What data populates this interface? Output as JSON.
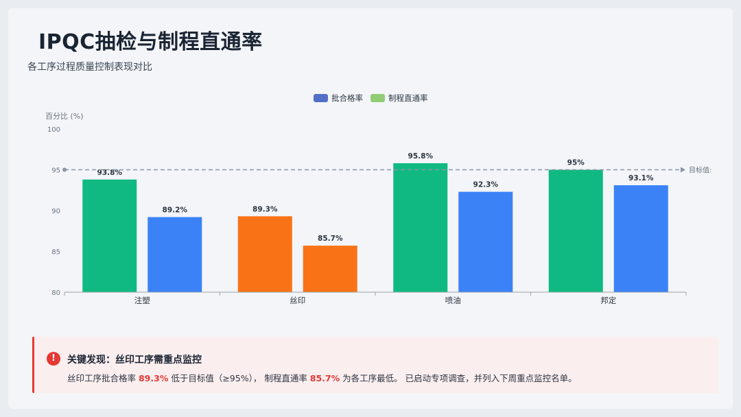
{
  "header": {
    "title": "IPQC抽检与制程直通率",
    "subtitle": "各工序过程质量控制表现对比"
  },
  "chart_data": {
    "type": "bar",
    "categories": [
      "注塑",
      "丝印",
      "喷油",
      "邦定"
    ],
    "series": [
      {
        "name": "批合格率",
        "legend_color": "#5470c6",
        "values": [
          93.8,
          89.3,
          95.8,
          95
        ]
      },
      {
        "name": "制程直通率",
        "legend_color": "#91cc75",
        "values": [
          89.2,
          85.7,
          92.3,
          93.1
        ]
      }
    ],
    "data_labels": [
      [
        "93.8%",
        "89.3%",
        "95.8%",
        "95%"
      ],
      [
        "89.2%",
        "85.7%",
        "92.3%",
        "93.1%"
      ]
    ],
    "bar_colors": [
      [
        "#10b981",
        "#f97316",
        "#10b981",
        "#10b981"
      ],
      [
        "#3b82f6",
        "#f97316",
        "#3b82f6",
        "#3b82f6"
      ]
    ],
    "ylabel": "百分比 (%)",
    "ylim": [
      80,
      100
    ],
    "yticks": [
      "100",
      "95",
      "90",
      "85",
      "80"
    ],
    "target": {
      "value": 95,
      "label": "目标值:"
    },
    "legend_position": "top-center",
    "grid": false
  },
  "alert": {
    "icon": "!",
    "title": "关键发现：丝印工序需重点监控",
    "text_1": "丝印工序批合格率 ",
    "value_1": "89.3%",
    "text_2": " 低于目标值（≥95%）， 制程直通率 ",
    "value_2": "85.7%",
    "text_3": " 为各工序最低。 已启动专项调查，并列入下周重点监控名单。",
    "color": "#e53935"
  }
}
